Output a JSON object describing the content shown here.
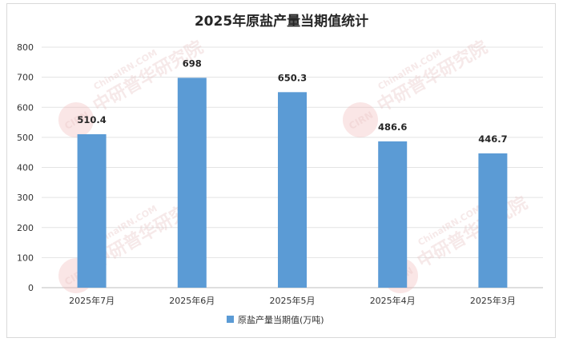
{
  "chart_data": {
    "type": "bar",
    "title": "2025年原盐产量当期值统计",
    "categories": [
      "2025年7月",
      "2025年6月",
      "2025年5月",
      "2025年4月",
      "2025年3月"
    ],
    "series": [
      {
        "name": "原盐产量当期值(万吨)",
        "values": [
          510.4,
          698,
          650.3,
          486.6,
          446.7
        ],
        "color": "#5b9bd5"
      }
    ],
    "data_labels": [
      "510.4",
      "698",
      "650.3",
      "486.6",
      "446.7"
    ],
    "ylim": [
      0,
      800
    ],
    "yticks": [
      0,
      100,
      200,
      300,
      400,
      500,
      600,
      700,
      800
    ],
    "grid": true,
    "legend_position": "bottom"
  },
  "watermark": {
    "text_cn": "中研普华研究院",
    "text_en": "ChinaIRN.COM",
    "logo": "CIRN"
  }
}
